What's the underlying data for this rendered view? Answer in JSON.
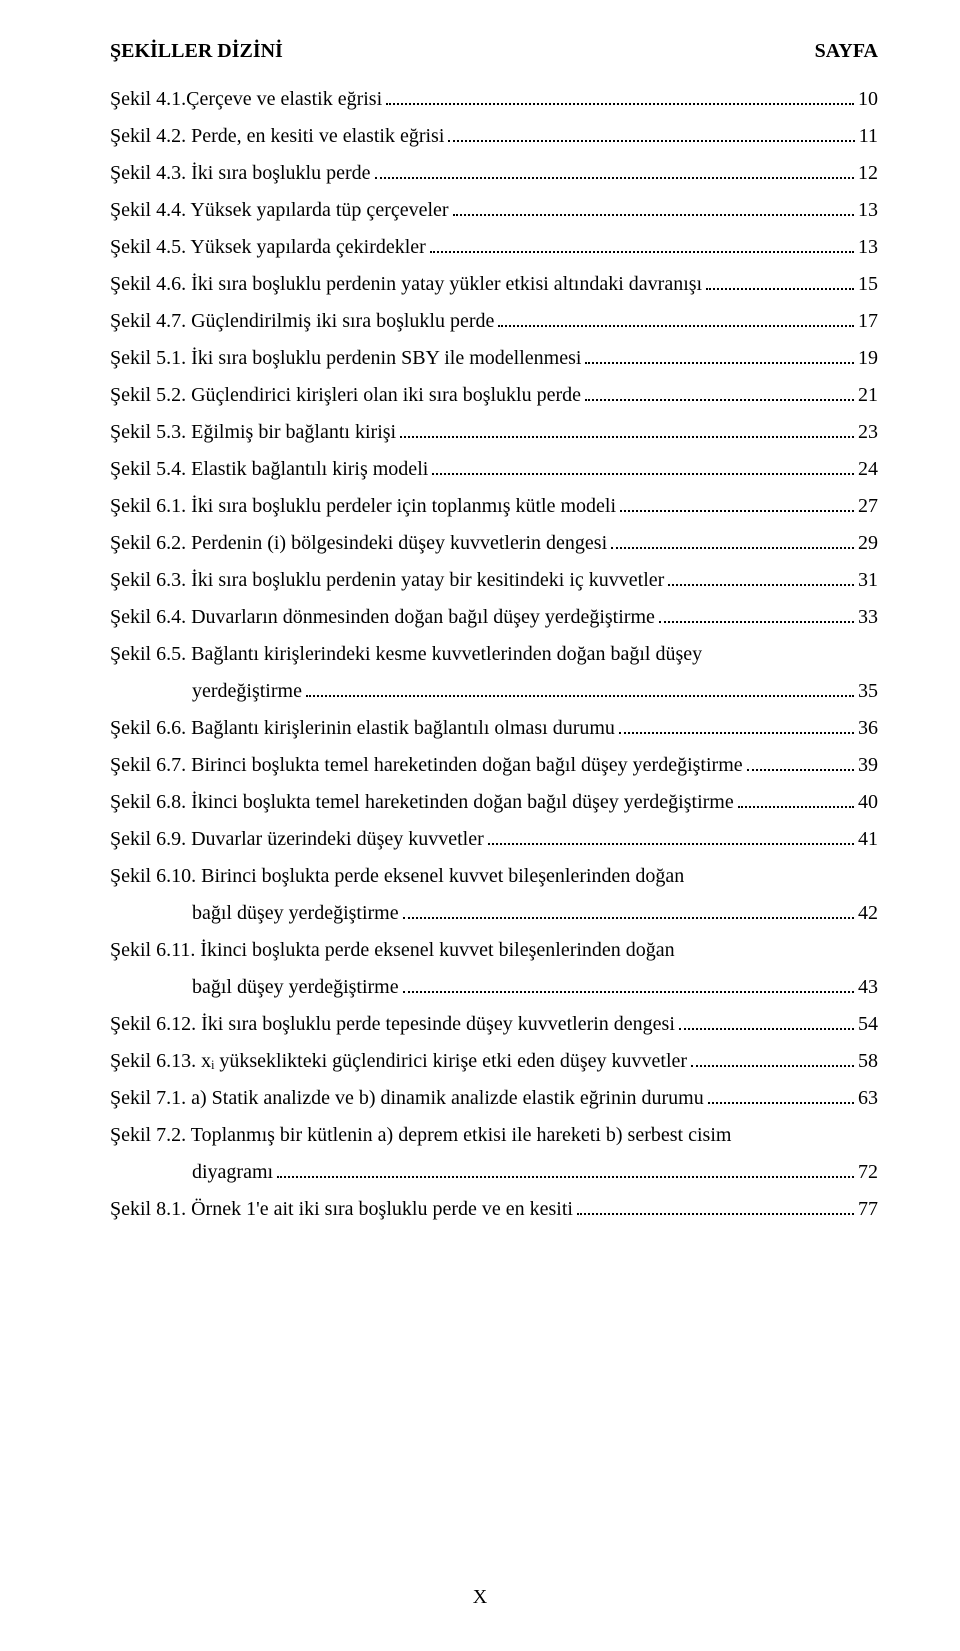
{
  "header": {
    "left": "ŞEKİLLER DİZİNİ",
    "right": "SAYFA"
  },
  "entries": [
    {
      "label": "Şekil 4.1.Çerçeve ve elastik eğrisi",
      "page": "10"
    },
    {
      "label": "Şekil 4.2. Perde, en kesiti ve elastik eğrisi",
      "page": "11"
    },
    {
      "label": "Şekil 4.3. İki sıra boşluklu perde",
      "page": "12"
    },
    {
      "label": "Şekil 4.4. Yüksek yapılarda tüp çerçeveler",
      "page": "13"
    },
    {
      "label": "Şekil 4.5. Yüksek yapılarda çekirdekler",
      "page": "13"
    },
    {
      "label": "Şekil 4.6. İki sıra boşluklu perdenin yatay yükler etkisi altındaki davranışı",
      "page": "15"
    },
    {
      "label": "Şekil 4.7. Güçlendirilmiş iki sıra boşluklu perde",
      "page": "17"
    },
    {
      "label": "Şekil 5.1. İki sıra boşluklu perdenin SBY ile modellenmesi",
      "page": "19"
    },
    {
      "label": "Şekil 5.2. Güçlendirici kirişleri olan iki sıra boşluklu perde",
      "page": "21"
    },
    {
      "label": "Şekil 5.3. Eğilmiş bir bağlantı kirişi",
      "page": "23"
    },
    {
      "label": "Şekil 5.4. Elastik bağlantılı kiriş modeli",
      "page": "24"
    },
    {
      "label": "Şekil 6.1. İki sıra boşluklu perdeler için toplanmış kütle modeli",
      "page": "27"
    },
    {
      "label": "Şekil 6.2. Perdenin (i) bölgesindeki düşey kuvvetlerin dengesi",
      "page": "29"
    },
    {
      "label": "Şekil 6.3. İki sıra boşluklu perdenin yatay bir kesitindeki iç kuvvetler",
      "page": "31"
    },
    {
      "label": "Şekil 6.4. Duvarların dönmesinden doğan bağıl düşey yerdeğiştirme",
      "page": "33"
    },
    {
      "label": "Şekil 6.5. Bağlantı kirişlerindeki kesme kuvvetlerinden doğan bağıl düşey",
      "cont": "yerdeğiştirme",
      "page": "35"
    },
    {
      "label": "Şekil 6.6. Bağlantı kirişlerinin elastik bağlantılı olması durumu",
      "page": "36"
    },
    {
      "label": "Şekil 6.7. Birinci boşlukta temel hareketinden doğan bağıl düşey yerdeğiştirme",
      "page": "39"
    },
    {
      "label": "Şekil 6.8. İkinci boşlukta temel hareketinden doğan bağıl düşey yerdeğiştirme",
      "page": "40"
    },
    {
      "label": "Şekil 6.9. Duvarlar üzerindeki düşey kuvvetler",
      "page": "41"
    },
    {
      "label": "Şekil 6.10. Birinci boşlukta perde eksenel kuvvet bileşenlerinden doğan",
      "cont": "bağıl düşey yerdeğiştirme",
      "page": "42"
    },
    {
      "label": "Şekil 6.11. İkinci boşlukta perde eksenel kuvvet bileşenlerinden doğan",
      "cont": "bağıl düşey yerdeğiştirme",
      "page": "43"
    },
    {
      "label": "Şekil 6.12. İki sıra boşluklu perde tepesinde düşey kuvvetlerin dengesi",
      "page": "54"
    },
    {
      "label": "Şekil 6.13. xᵢ yükseklikteki güçlendirici kirişe etki eden düşey kuvvetler",
      "page": "58"
    },
    {
      "label": "Şekil 7.1. a) Statik analizde ve b) dinamik analizde elastik eğrinin durumu",
      "page": "63"
    },
    {
      "label": "Şekil 7.2. Toplanmış bir kütlenin a) deprem etkisi ile hareketi b) serbest cisim",
      "cont": "diyagramı",
      "page": "72"
    },
    {
      "label": "Şekil 8.1. Örnek 1'e ait iki sıra boşluklu perde ve en kesiti",
      "page": "77"
    }
  ],
  "footer": {
    "page_number": "X"
  }
}
